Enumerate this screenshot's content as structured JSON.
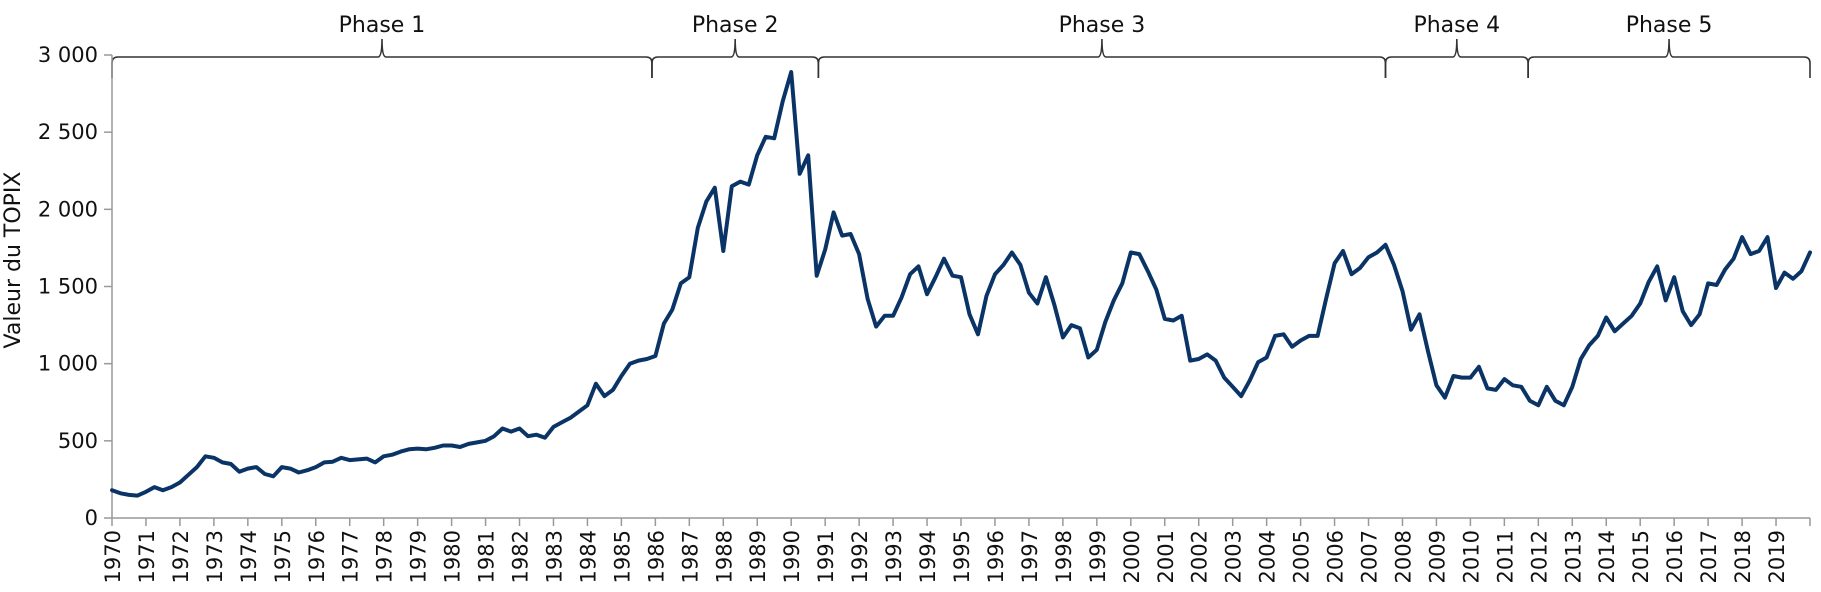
{
  "chart_data": {
    "type": "line",
    "title": "",
    "xlabel": "",
    "ylabel": "Valeur du TOPIX",
    "ylim": [
      0,
      3000
    ],
    "xlim": [
      1970.0,
      2020.0
    ],
    "y_ticks": [
      {
        "value": 0,
        "label": "0"
      },
      {
        "value": 500,
        "label": "500"
      },
      {
        "value": 1000,
        "label": "1 000"
      },
      {
        "value": 1500,
        "label": "1 500"
      },
      {
        "value": 2000,
        "label": "2 000"
      },
      {
        "value": 2500,
        "label": "2 500"
      },
      {
        "value": 3000,
        "label": "3 000"
      }
    ],
    "x_ticks": [
      "1970",
      "1971",
      "1972",
      "1973",
      "1974",
      "1975",
      "1976",
      "1977",
      "1978",
      "1979",
      "1980",
      "1981",
      "1982",
      "1983",
      "1984",
      "1985",
      "1986",
      "1987",
      "1988",
      "1989",
      "1990",
      "1991",
      "1992",
      "1993",
      "1994",
      "1995",
      "1996",
      "1997",
      "1998",
      "1999",
      "2000",
      "2001",
      "2002",
      "2003",
      "2004",
      "2005",
      "2006",
      "2007",
      "2008",
      "2009",
      "2010",
      "2011",
      "2012",
      "2013",
      "2014",
      "2015",
      "2016",
      "2017",
      "2018",
      "2019"
    ],
    "grid": false,
    "line_color": "#0b3466",
    "phases": [
      {
        "label": "Phase 1",
        "start": 1970.0,
        "end": 1985.9
      },
      {
        "label": "Phase 2",
        "start": 1985.9,
        "end": 1990.8
      },
      {
        "label": "Phase 3",
        "start": 1990.8,
        "end": 2007.5
      },
      {
        "label": "Phase 4",
        "start": 2007.5,
        "end": 2011.7
      },
      {
        "label": "Phase 5",
        "start": 2011.7,
        "end": 2020.0
      }
    ],
    "series": [
      {
        "name": "",
        "x": [
          1970.0,
          1970.25,
          1970.5,
          1970.75,
          1971.0,
          1971.25,
          1971.5,
          1971.75,
          1972.0,
          1972.25,
          1972.5,
          1972.75,
          1973.0,
          1973.25,
          1973.5,
          1973.75,
          1974.0,
          1974.25,
          1974.5,
          1974.75,
          1975.0,
          1975.25,
          1975.5,
          1975.75,
          1976.0,
          1976.25,
          1976.5,
          1976.75,
          1977.0,
          1977.25,
          1977.5,
          1977.75,
          1978.0,
          1978.25,
          1978.5,
          1978.75,
          1979.0,
          1979.25,
          1979.5,
          1979.75,
          1980.0,
          1980.25,
          1980.5,
          1980.75,
          1981.0,
          1981.25,
          1981.5,
          1981.75,
          1982.0,
          1982.25,
          1982.5,
          1982.75,
          1983.0,
          1983.25,
          1983.5,
          1983.75,
          1984.0,
          1984.25,
          1984.5,
          1984.75,
          1985.0,
          1985.25,
          1985.5,
          1985.75,
          1986.0,
          1986.25,
          1986.5,
          1986.75,
          1987.0,
          1987.25,
          1987.5,
          1987.75,
          1988.0,
          1988.25,
          1988.5,
          1988.75,
          1989.0,
          1989.25,
          1989.5,
          1989.75,
          1990.0,
          1990.25,
          1990.5,
          1990.75,
          1991.0,
          1991.25,
          1991.5,
          1991.75,
          1992.0,
          1992.25,
          1992.5,
          1992.75,
          1993.0,
          1993.25,
          1993.5,
          1993.75,
          1994.0,
          1994.25,
          1994.5,
          1994.75,
          1995.0,
          1995.25,
          1995.5,
          1995.75,
          1996.0,
          1996.25,
          1996.5,
          1996.75,
          1997.0,
          1997.25,
          1997.5,
          1997.75,
          1998.0,
          1998.25,
          1998.5,
          1998.75,
          1999.0,
          1999.25,
          1999.5,
          1999.75,
          2000.0,
          2000.25,
          2000.5,
          2000.75,
          2001.0,
          2001.25,
          2001.5,
          2001.75,
          2002.0,
          2002.25,
          2002.5,
          2002.75,
          2003.0,
          2003.25,
          2003.5,
          2003.75,
          2004.0,
          2004.25,
          2004.5,
          2004.75,
          2005.0,
          2005.25,
          2005.5,
          2005.75,
          2006.0,
          2006.25,
          2006.5,
          2006.75,
          2007.0,
          2007.25,
          2007.5,
          2007.75,
          2008.0,
          2008.25,
          2008.5,
          2008.75,
          2009.0,
          2009.25,
          2009.5,
          2009.75,
          2010.0,
          2010.25,
          2010.5,
          2010.75,
          2011.0,
          2011.25,
          2011.5,
          2011.75,
          2012.0,
          2012.25,
          2012.5,
          2012.75,
          2013.0,
          2013.25,
          2013.5,
          2013.75,
          2014.0,
          2014.25,
          2014.5,
          2014.75,
          2015.0,
          2015.25,
          2015.5,
          2015.75,
          2016.0,
          2016.25,
          2016.5,
          2016.75,
          2017.0,
          2017.25,
          2017.5,
          2017.75,
          2018.0,
          2018.25,
          2018.5,
          2018.75,
          2019.0,
          2019.25,
          2019.5,
          2019.75,
          2020.0
        ],
        "values": [
          180,
          160,
          150,
          145,
          170,
          200,
          180,
          200,
          230,
          280,
          330,
          400,
          390,
          360,
          350,
          300,
          320,
          330,
          285,
          270,
          330,
          320,
          295,
          310,
          330,
          360,
          365,
          390,
          375,
          380,
          385,
          360,
          400,
          410,
          430,
          445,
          450,
          445,
          455,
          470,
          470,
          460,
          480,
          490,
          500,
          530,
          580,
          560,
          580,
          530,
          540,
          520,
          590,
          620,
          650,
          690,
          730,
          870,
          790,
          830,
          920,
          1000,
          1020,
          1030,
          1050,
          1260,
          1350,
          1520,
          1560,
          1880,
          2050,
          2140,
          1730,
          2150,
          2180,
          2160,
          2350,
          2470,
          2460,
          2700,
          2890,
          2230,
          2350,
          1570,
          1740,
          1980,
          1830,
          1840,
          1710,
          1420,
          1240,
          1310,
          1310,
          1430,
          1580,
          1630,
          1450,
          1560,
          1680,
          1570,
          1560,
          1320,
          1190,
          1440,
          1580,
          1640,
          1720,
          1640,
          1460,
          1390,
          1560,
          1380,
          1170,
          1250,
          1230,
          1040,
          1090,
          1270,
          1410,
          1520,
          1720,
          1710,
          1600,
          1480,
          1290,
          1280,
          1310,
          1020,
          1030,
          1060,
          1020,
          910,
          850,
          790,
          890,
          1010,
          1040,
          1180,
          1190,
          1110,
          1150,
          1180,
          1180,
          1420,
          1650,
          1730,
          1580,
          1620,
          1690,
          1720,
          1770,
          1640,
          1470,
          1220,
          1320,
          1080,
          860,
          780,
          920,
          910,
          910,
          980,
          840,
          830,
          900,
          860,
          850,
          760,
          730,
          850,
          760,
          730,
          850,
          1030,
          1120,
          1180,
          1300,
          1210,
          1260,
          1310,
          1390,
          1530,
          1630,
          1410,
          1560,
          1340,
          1250,
          1320,
          1520,
          1510,
          1610,
          1680,
          1820,
          1710,
          1730,
          1820,
          1490,
          1590,
          1550,
          1600,
          1720
        ]
      }
    ]
  }
}
